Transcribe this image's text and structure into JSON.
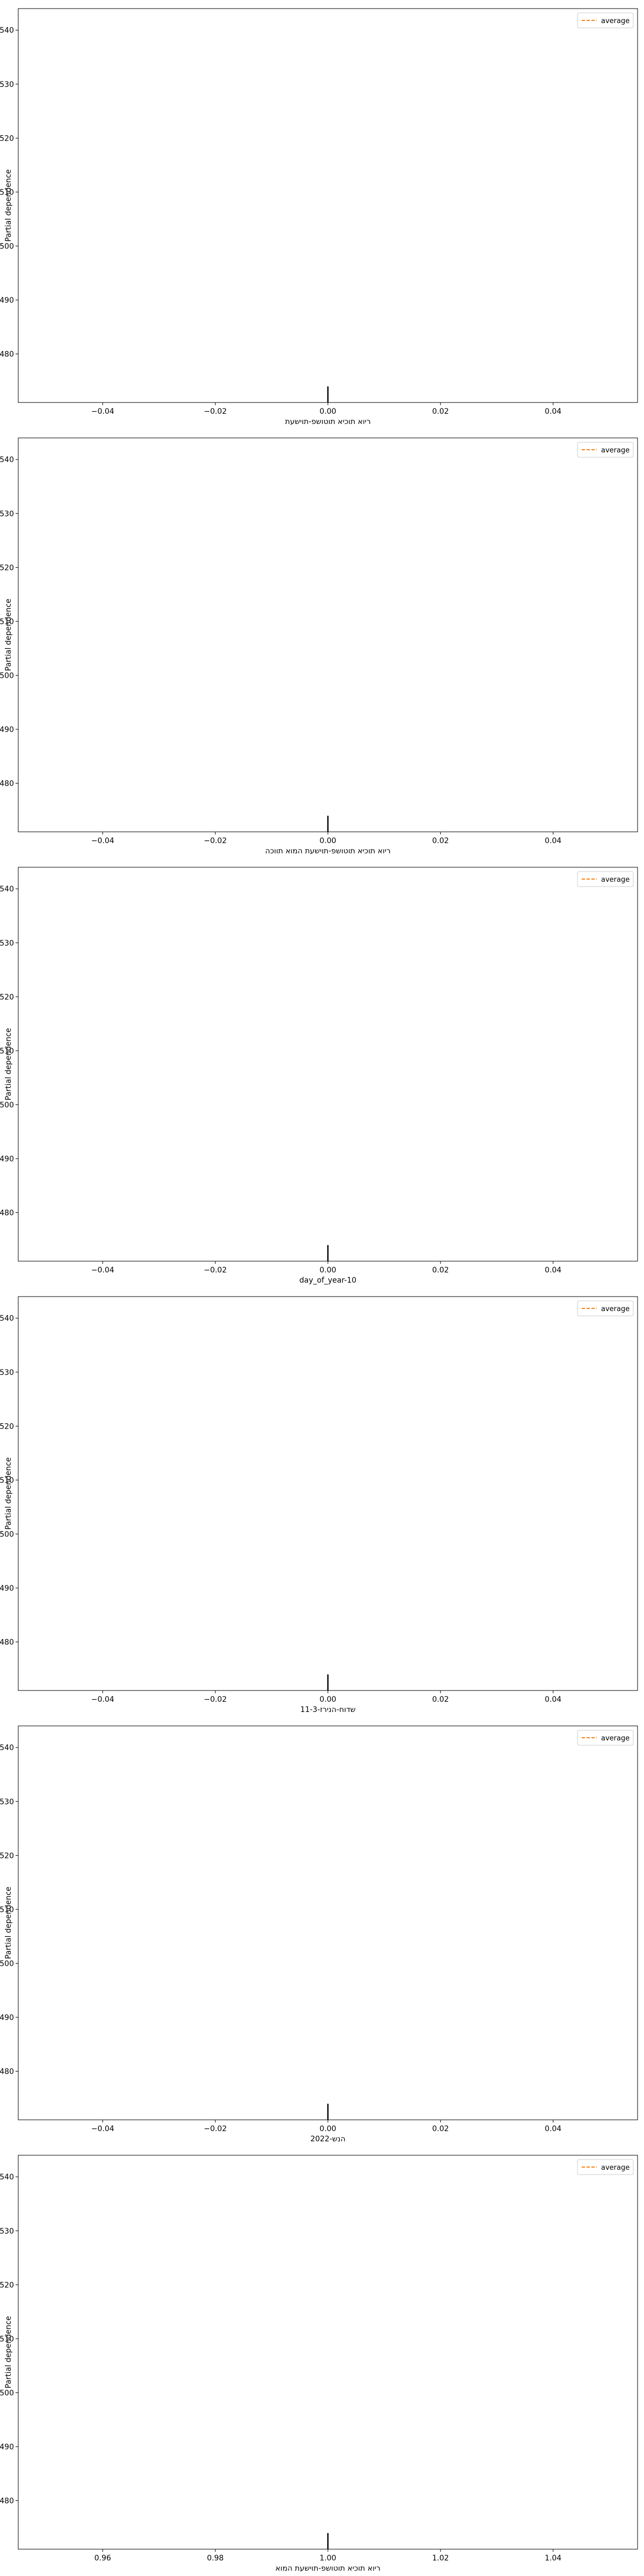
{
  "chart_data": [
    {
      "type": "line",
      "title": "",
      "xlabel": "ריוא תוכיא תוטושפ-תוישעת",
      "ylabel": "Partial dependence",
      "xlim": [
        -0.055,
        0.055
      ],
      "ylim": [
        471,
        544
      ],
      "xticks": [
        -0.04,
        -0.02,
        0.0,
        0.02,
        0.04
      ],
      "xtick_labels": [
        "−0.04",
        "−0.02",
        "0.00",
        "0.02",
        "0.04"
      ],
      "yticks": [
        480,
        490,
        500,
        510,
        520,
        530,
        540
      ],
      "ytick_labels": [
        "480",
        "490",
        "500",
        "510",
        "520",
        "530",
        "540"
      ],
      "series": [
        {
          "name": "average",
          "x": [],
          "y": []
        }
      ],
      "rug": [
        0.0
      ],
      "legend_position": "top-right",
      "grid": false
    },
    {
      "type": "line",
      "title": "",
      "xlabel": "ריוא תוכיא תוטושפ-תוישעת המוא תווכה",
      "ylabel": "Partial dependence",
      "xlim": [
        -0.055,
        0.055
      ],
      "ylim": [
        471,
        544
      ],
      "xticks": [
        -0.04,
        -0.02,
        0.0,
        0.02,
        0.04
      ],
      "xtick_labels": [
        "−0.04",
        "−0.02",
        "0.00",
        "0.02",
        "0.04"
      ],
      "yticks": [
        480,
        490,
        500,
        510,
        520,
        530,
        540
      ],
      "ytick_labels": [
        "480",
        "490",
        "500",
        "510",
        "520",
        "530",
        "540"
      ],
      "series": [
        {
          "name": "average",
          "x": [],
          "y": []
        }
      ],
      "rug": [
        0.0
      ],
      "legend_position": "top-right",
      "grid": false
    },
    {
      "type": "line",
      "title": "",
      "xlabel": "day_of_year-10",
      "ylabel": "Partial dependence",
      "xlim": [
        -0.055,
        0.055
      ],
      "ylim": [
        471,
        544
      ],
      "xticks": [
        -0.04,
        -0.02,
        0.0,
        0.02,
        0.04
      ],
      "xtick_labels": [
        "−0.04",
        "−0.02",
        "0.00",
        "0.02",
        "0.04"
      ],
      "yticks": [
        480,
        490,
        500,
        510,
        520,
        530,
        540
      ],
      "ytick_labels": [
        "480",
        "490",
        "500",
        "510",
        "520",
        "530",
        "540"
      ],
      "series": [
        {
          "name": "average",
          "x": [],
          "y": []
        }
      ],
      "rug": [
        0.0
      ],
      "legend_position": "top-right",
      "grid": false
    },
    {
      "type": "line",
      "title": "",
      "xlabel": "שדוח-הנירז-11-3",
      "ylabel": "Partial dependence",
      "xlim": [
        -0.055,
        0.055
      ],
      "ylim": [
        471,
        544
      ],
      "xticks": [
        -0.04,
        -0.02,
        0.0,
        0.02,
        0.04
      ],
      "xtick_labels": [
        "−0.04",
        "−0.02",
        "0.00",
        "0.02",
        "0.04"
      ],
      "yticks": [
        480,
        490,
        500,
        510,
        520,
        530,
        540
      ],
      "ytick_labels": [
        "480",
        "490",
        "500",
        "510",
        "520",
        "530",
        "540"
      ],
      "series": [
        {
          "name": "average",
          "x": [],
          "y": []
        }
      ],
      "rug": [
        0.0
      ],
      "legend_position": "top-right",
      "grid": false
    },
    {
      "type": "line",
      "title": "",
      "xlabel": "הנש-2022",
      "ylabel": "Partial dependence",
      "xlim": [
        -0.055,
        0.055
      ],
      "ylim": [
        471,
        544
      ],
      "xticks": [
        -0.04,
        -0.02,
        0.0,
        0.02,
        0.04
      ],
      "xtick_labels": [
        "−0.04",
        "−0.02",
        "0.00",
        "0.02",
        "0.04"
      ],
      "yticks": [
        480,
        490,
        500,
        510,
        520,
        530,
        540
      ],
      "ytick_labels": [
        "480",
        "490",
        "500",
        "510",
        "520",
        "530",
        "540"
      ],
      "series": [
        {
          "name": "average",
          "x": [],
          "y": []
        }
      ],
      "rug": [
        0.0
      ],
      "legend_position": "top-right",
      "grid": false
    },
    {
      "type": "line",
      "title": "",
      "xlabel": "ריוא תוכיא תוטושפ-תוישעת המוא",
      "ylabel": "Partial dependence",
      "xlim": [
        0.945,
        1.055
      ],
      "ylim": [
        471,
        544
      ],
      "xticks": [
        0.96,
        0.98,
        1.0,
        1.02,
        1.04
      ],
      "xtick_labels": [
        "0.96",
        "0.98",
        "1.00",
        "1.02",
        "1.04"
      ],
      "yticks": [
        480,
        490,
        500,
        510,
        520,
        530,
        540
      ],
      "ytick_labels": [
        "480",
        "490",
        "500",
        "510",
        "520",
        "530",
        "540"
      ],
      "series": [
        {
          "name": "average",
          "x": [],
          "y": []
        }
      ],
      "rug": [
        1.0
      ],
      "legend_position": "top-right",
      "grid": false
    }
  ],
  "colors": {
    "average_line": "#ff7f0e",
    "rug": "#000000",
    "axes": "#000000",
    "legend_border": "#cccccc"
  }
}
